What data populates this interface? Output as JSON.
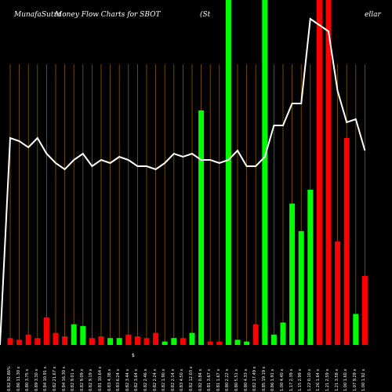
{
  "header": {
    "site": "MunafaSutra",
    "title": "Money Flow  Charts for SBOT",
    "company_left": "(St",
    "company_right": "ellar"
  },
  "colors": {
    "background": "#000000",
    "grid": "#8b5a00",
    "up_bar": "#00ff00",
    "down_bar": "#ff0000",
    "price_line": "#ffffff",
    "text": "#ffffff"
  },
  "chart_data": {
    "type": "bar",
    "title": "Money Flow  Charts for SBOT",
    "xlabel": "",
    "ylabel": "",
    "grid": true,
    "ylim": [
      0,
      100
    ],
    "middle_label": "$",
    "categories": [
      "0.82 92.86%",
      "0.86 11.30 x",
      "0.80 3.75 x",
      "0.89 3.30 x",
      "0.84 10.91 x",
      "0.82 21.67 x",
      "0.84 16.30 x",
      "0.82 9.01 x",
      "0.82 9.09 x",
      "0.82 9.19 x",
      "0.81 10.64 x",
      "0.83 4.38 x",
      "0.83 6.24 x",
      "0.82 3.44 x",
      "0.82 3.64 x",
      "0.82 2.46 x",
      "0.82 2.24 x",
      "0.82 1.90 x",
      "0.82 2.14 x",
      "0.83 4.50 x",
      "0.82 12.03 x",
      "0.82 0.84 x",
      "0.81 3.67 x",
      "0.81 1.67 x",
      "0.80 2.22 x",
      "0.80 5.51 x",
      "0.80 4.33 x",
      "0.82 17.49 x",
      "0.85 19.19 x",
      "0.86 1.91 x",
      "1.00 4.40 x",
      "1.17 2.39 x",
      "1.15 2.99 x",
      "1.22 0.10 x",
      "1.26 1.64 x",
      "1.21 2.59 x",
      "1.21 3.58 x",
      "1.00 1.60 x",
      "1.07 9.29 x",
      "1.00 1.92 x"
    ],
    "series": [
      {
        "role": "money_flow_bars",
        "values": [
          2,
          1.5,
          3,
          2,
          8,
          3.5,
          2.5,
          6,
          5.5,
          2,
          2.5,
          2,
          2,
          3,
          2.5,
          2,
          3.5,
          1,
          2,
          2,
          3.5,
          68,
          1,
          1,
          100,
          1.5,
          1,
          6,
          100,
          3,
          6.5,
          41,
          33,
          45,
          100,
          100,
          30,
          60,
          9,
          20
        ],
        "directions": [
          "down",
          "down",
          "down",
          "down",
          "down",
          "down",
          "down",
          "up",
          "up",
          "down",
          "down",
          "up",
          "up",
          "down",
          "down",
          "down",
          "down",
          "up",
          "up",
          "down",
          "up",
          "up",
          "down",
          "down",
          "up",
          "up",
          "up",
          "down",
          "up",
          "up",
          "up",
          "up",
          "up",
          "up",
          "down",
          "down",
          "down",
          "down",
          "up",
          "down"
        ]
      },
      {
        "role": "price_line",
        "values": [
          0.86,
          0.85,
          0.83,
          0.86,
          0.81,
          0.78,
          0.76,
          0.79,
          0.81,
          0.77,
          0.79,
          0.78,
          0.8,
          0.79,
          0.77,
          0.77,
          0.76,
          0.78,
          0.81,
          0.8,
          0.81,
          0.79,
          0.79,
          0.78,
          0.79,
          0.82,
          0.77,
          0.77,
          0.8,
          0.9,
          0.9,
          0.97,
          0.97,
          1.24,
          1.22,
          1.2,
          1.01,
          0.91,
          0.92,
          0.82
        ]
      }
    ]
  }
}
